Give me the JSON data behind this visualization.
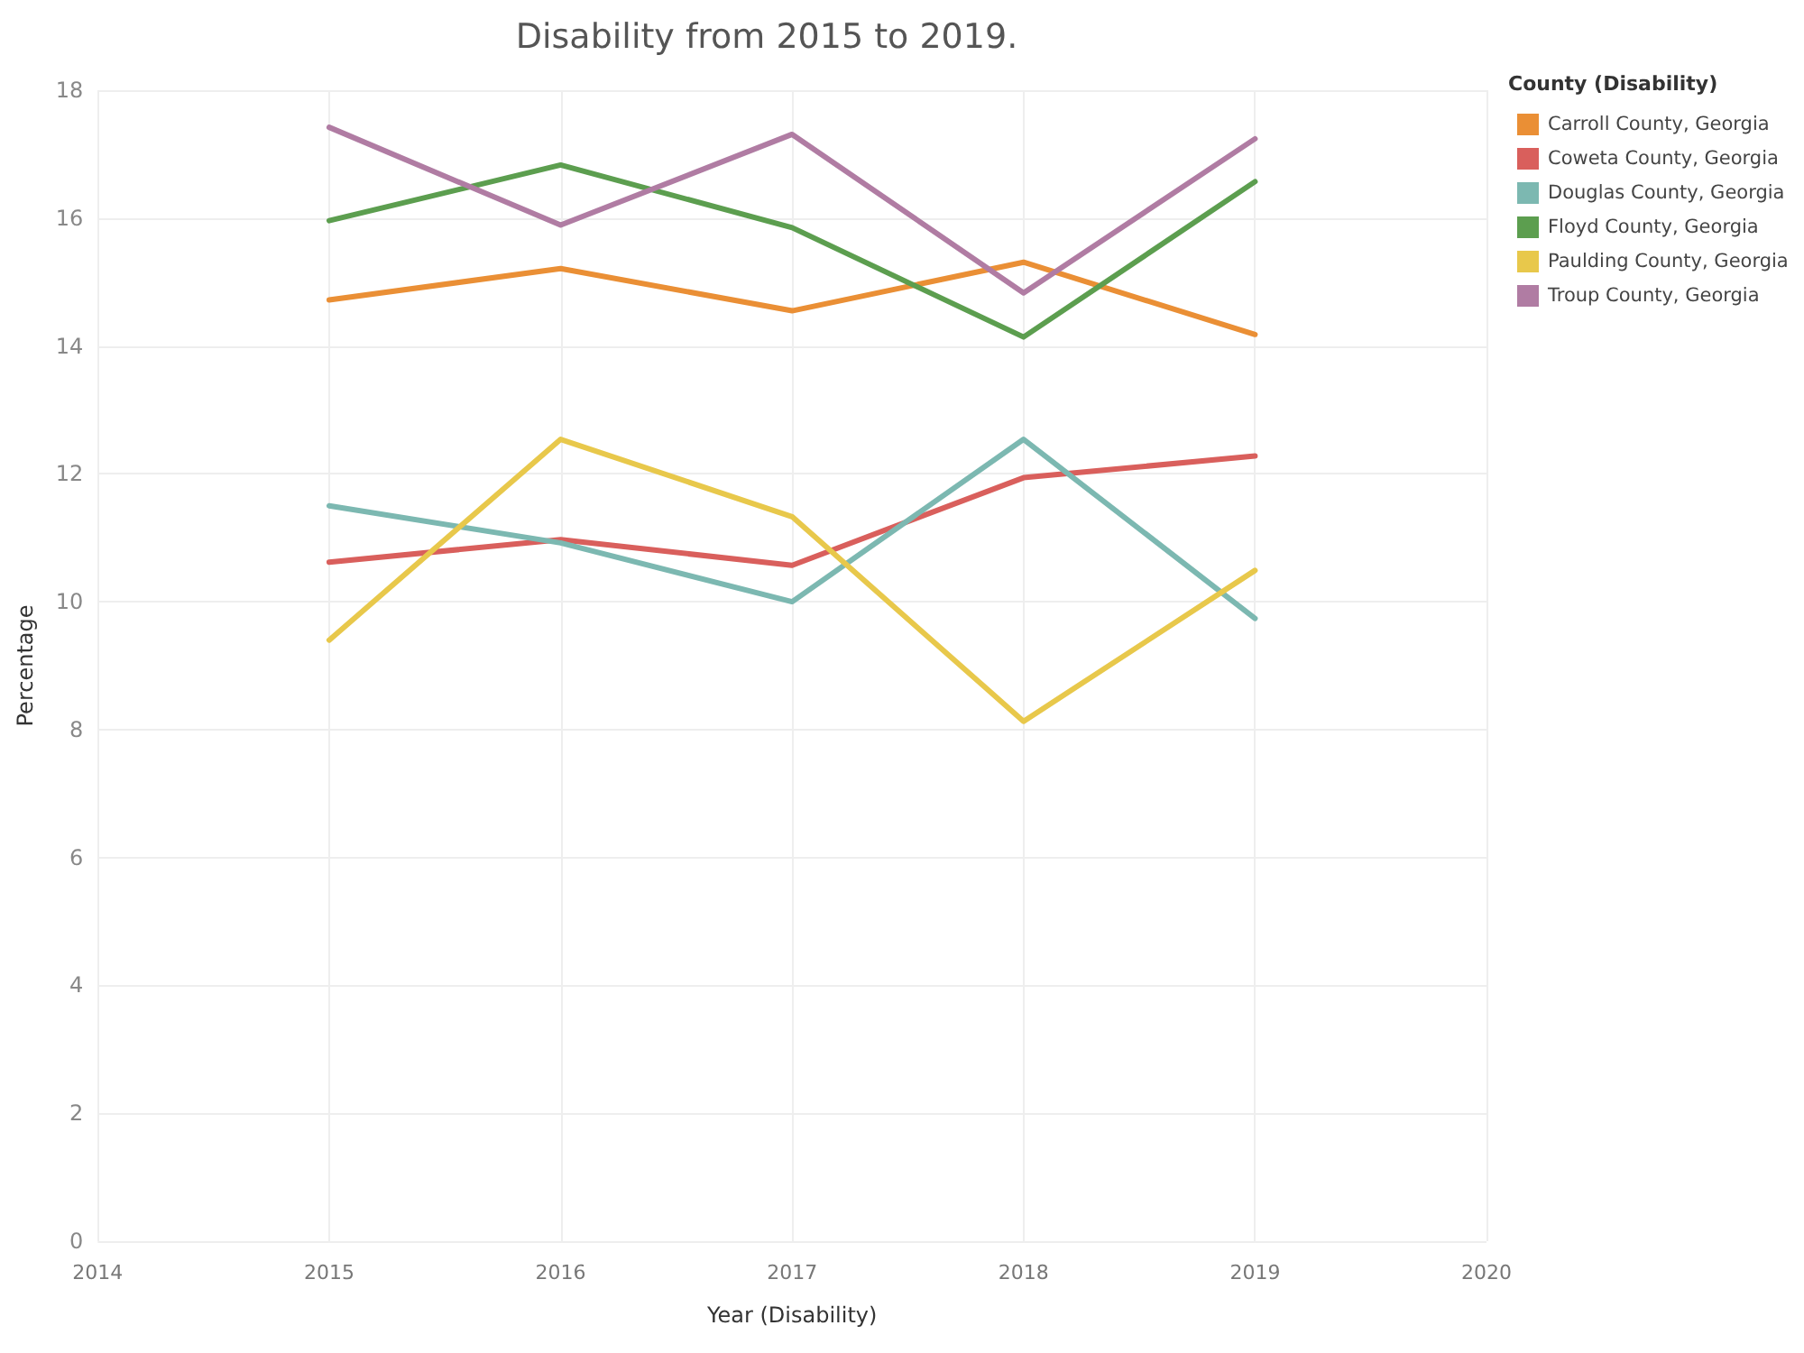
{
  "chart_data": {
    "type": "line",
    "title": "Disability from 2015 to 2019.",
    "xlabel": "Year (Disability)",
    "ylabel": "Percentage",
    "legend_title": "County (Disability)",
    "x": [
      2015,
      2016,
      2017,
      2018,
      2019
    ],
    "series": [
      {
        "name": "Carroll County, Georgia",
        "color": "#ea8f35",
        "values": [
          14.72,
          15.21,
          14.55,
          15.31,
          14.18
        ]
      },
      {
        "name": "Coweta County, Georgia",
        "color": "#d95f5c",
        "values": [
          10.62,
          10.97,
          10.57,
          11.94,
          12.28
        ]
      },
      {
        "name": "Douglas County, Georgia",
        "color": "#7cb8b1",
        "values": [
          11.5,
          10.92,
          10.0,
          12.54,
          9.74
        ]
      },
      {
        "name": "Floyd County, Georgia",
        "color": "#5c9e4f",
        "values": [
          15.96,
          16.83,
          15.85,
          14.14,
          16.57
        ]
      },
      {
        "name": "Paulding County, Georgia",
        "color": "#e8c84b",
        "values": [
          9.4,
          12.54,
          11.33,
          8.13,
          10.49
        ]
      },
      {
        "name": "Troup County, Georgia",
        "color": "#b07ca3",
        "values": [
          17.42,
          15.89,
          17.31,
          14.83,
          17.24
        ]
      }
    ],
    "xlim": [
      2014,
      2020
    ],
    "xticks": [
      2014,
      2015,
      2016,
      2017,
      2018,
      2019,
      2020
    ],
    "ylim": [
      0,
      18
    ],
    "yticks": [
      0,
      2,
      4,
      6,
      8,
      10,
      12,
      14,
      16,
      18
    ],
    "grid": true,
    "legend": "right",
    "marker": "none",
    "line_style": "solid"
  }
}
